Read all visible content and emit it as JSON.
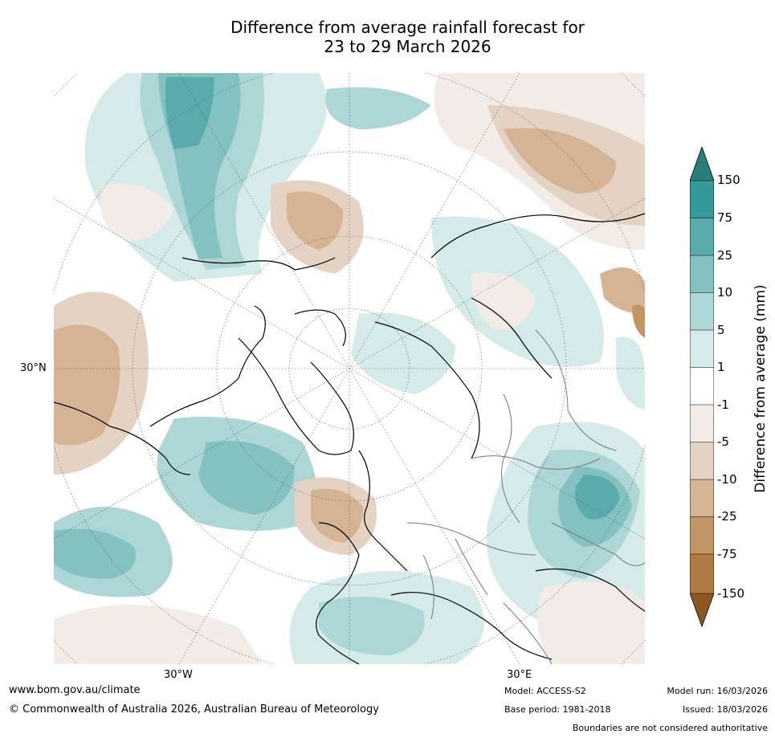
{
  "title_line1": "Difference from average rainfall forecast for",
  "title_line2": "23 to 29 March 2026",
  "map_labels": {
    "lat_30n": "30°N",
    "lon_30w": "30°W",
    "lon_30e": "30°E"
  },
  "colorbar": {
    "label": "Difference from average (mm)",
    "ticks": [
      "150",
      "75",
      "25",
      "10",
      "5",
      "1",
      "-1",
      "-5",
      "-10",
      "-25",
      "-75",
      "-150"
    ],
    "colors": {
      "c150_plus": "#2a7e7c",
      "c75_150": "#33999a",
      "c25_75": "#5aacac",
      "c10_25": "#83c2c1",
      "c5_10": "#acd7d6",
      "c1_5": "#d5ebea",
      "neutral": "#ffffff",
      "m1_5": "#f3ebe5",
      "m5_10": "#e4d3c2",
      "m10_25": "#d4b495",
      "m25_75": "#c39565",
      "m75_150": "#b07a43",
      "m150_minus": "#8e5722"
    }
  },
  "footer": {
    "website": "www.bom.gov.au/climate",
    "copyright": "© Commonwealth of Australia 2026, Australian Bureau of Meteorology",
    "model": "Model: ACCESS-S2",
    "base_period": "Base period: 1981-2018",
    "model_run": "Model run: 16/03/2026",
    "issued": "Issued: 18/03/2026",
    "disclaimer": "Boundaries are not considered authoritative"
  }
}
